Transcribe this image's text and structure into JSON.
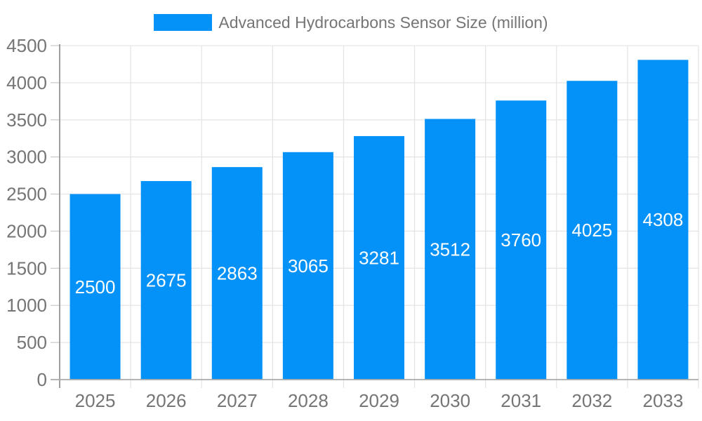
{
  "chart_data": {
    "type": "bar",
    "legend": {
      "label": "Advanced Hydrocarbons Sensor Size (million)",
      "position": "top"
    },
    "categories": [
      "2025",
      "2026",
      "2027",
      "2028",
      "2029",
      "2030",
      "2031",
      "2032",
      "2033"
    ],
    "series": [
      {
        "name": "Advanced Hydrocarbons Sensor Size (million)",
        "values": [
          2500,
          2675,
          2863,
          3065,
          3281,
          3512,
          3760,
          4025,
          4308
        ]
      }
    ],
    "bar_value_labels": [
      "2500",
      "2675",
      "2863",
      "3065",
      "3281",
      "3512",
      "3760",
      "4025",
      "4308"
    ],
    "title": "",
    "xlabel": "",
    "ylabel": "",
    "ylim": [
      0,
      4500
    ],
    "ytick_step": 500,
    "yticks": [
      0,
      500,
      1000,
      1500,
      2000,
      2500,
      3000,
      3500,
      4000,
      4500
    ],
    "grid": true,
    "legend_position": "top-center",
    "colors": {
      "bar": "#0491f8",
      "bar_label": "#ffffff",
      "axis_text": "#757575",
      "gridline": "#e5e5e5",
      "tick": "#cccccc",
      "y_axis_line": "#969696",
      "x_axis_line": "#ababab"
    }
  }
}
